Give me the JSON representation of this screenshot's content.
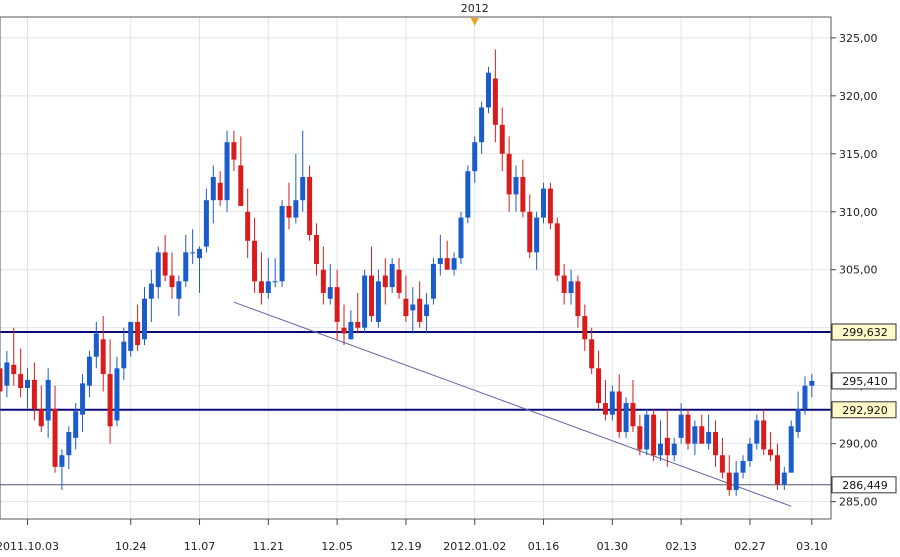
{
  "chart_data": {
    "type": "candlestick",
    "title": "",
    "xlabel": "",
    "ylabel": "",
    "ylim": [
      283.5,
      326.8
    ],
    "y_ticks": [
      "285,00",
      "290,00",
      "295,00",
      "300,00",
      "305,00",
      "310,00",
      "315,00",
      "320,00",
      "325,00"
    ],
    "y_tick_values": [
      285,
      290,
      295,
      300,
      305,
      310,
      315,
      320,
      325
    ],
    "x_ticks": [
      {
        "label": "2011.10.03",
        "bar": 4
      },
      {
        "label": "10.24",
        "bar": 19
      },
      {
        "label": "11.07",
        "bar": 29
      },
      {
        "label": "11.21",
        "bar": 39
      },
      {
        "label": "12.05",
        "bar": 49
      },
      {
        "label": "12.19",
        "bar": 59
      },
      {
        "label": "2012.01.02",
        "bar": 69
      },
      {
        "label": "01.16",
        "bar": 79
      },
      {
        "label": "01.30",
        "bar": 89
      },
      {
        "label": "02.13",
        "bar": 99
      },
      {
        "label": "02.27",
        "bar": 109
      },
      {
        "label": "03.10",
        "bar": 118
      }
    ],
    "year_marker": {
      "label": "2012",
      "bar": 69
    },
    "levels": [
      {
        "value": 299.632,
        "label": "299,632",
        "style": "thick"
      },
      {
        "value": 292.92,
        "label": "292,920",
        "style": "thick"
      },
      {
        "value": 286.449,
        "label": "286,449",
        "style": "thin"
      }
    ],
    "extra_tag": {
      "value": 295.41,
      "label": "295,410"
    },
    "trendline": {
      "from": {
        "bar": 34,
        "value": 302.2
      },
      "to": {
        "bar": 115,
        "value": 284.6
      }
    },
    "bars": [
      [
        296.5,
        297.5,
        293.5,
        294.5
      ],
      [
        295.0,
        298.0,
        294.0,
        297.0
      ],
      [
        296.8,
        300.0,
        295.0,
        296.0
      ],
      [
        296.0,
        298.2,
        294.0,
        294.8
      ],
      [
        294.8,
        296.5,
        293.0,
        295.5
      ],
      [
        295.5,
        297.0,
        292.0,
        293.0
      ],
      [
        293.0,
        295.0,
        291.0,
        291.5
      ],
      [
        292.0,
        296.5,
        290.5,
        295.5
      ],
      [
        293.0,
        295.0,
        287.5,
        288.0
      ],
      [
        288.0,
        289.5,
        286.0,
        289.0
      ],
      [
        289.0,
        291.5,
        287.8,
        291.0
      ],
      [
        290.5,
        293.5,
        289.5,
        292.8
      ],
      [
        292.5,
        296.0,
        291.0,
        295.2
      ],
      [
        295.0,
        298.0,
        294.0,
        297.5
      ],
      [
        297.5,
        300.5,
        296.5,
        299.5
      ],
      [
        299.0,
        301.0,
        294.5,
        296.0
      ],
      [
        296.0,
        299.0,
        290.0,
        291.5
      ],
      [
        292.0,
        297.5,
        291.5,
        296.5
      ],
      [
        296.5,
        300.0,
        295.5,
        298.8
      ],
      [
        298.0,
        300.5,
        297.5,
        300.5
      ],
      [
        300.5,
        302.0,
        298.0,
        298.5
      ],
      [
        299.0,
        303.5,
        298.5,
        302.5
      ],
      [
        302.5,
        305.0,
        300.5,
        303.8
      ],
      [
        303.5,
        307.0,
        302.5,
        306.5
      ],
      [
        306.5,
        308.0,
        304.0,
        304.5
      ],
      [
        304.5,
        306.5,
        302.5,
        303.5
      ],
      [
        302.5,
        304.5,
        301.0,
        304.0
      ],
      [
        304.0,
        308.0,
        303.5,
        306.5
      ],
      [
        306.5,
        308.5,
        305.5,
        306.5
      ],
      [
        306.0,
        307.0,
        303.0,
        306.8
      ],
      [
        307.0,
        312.0,
        306.5,
        311.0
      ],
      [
        311.0,
        314.0,
        309.0,
        313.0
      ],
      [
        312.5,
        313.5,
        310.5,
        311.0
      ],
      [
        311.0,
        317.0,
        310.0,
        316.0
      ],
      [
        316.0,
        317.0,
        313.5,
        314.5
      ],
      [
        314.0,
        316.5,
        310.5,
        310.5
      ],
      [
        310.0,
        312.0,
        306.0,
        307.5
      ],
      [
        307.5,
        309.5,
        303.0,
        304.0
      ],
      [
        304.0,
        306.5,
        302.0,
        303.0
      ],
      [
        303.0,
        306.0,
        302.5,
        304.0
      ],
      [
        304.0,
        306.0,
        303.5,
        304.0
      ],
      [
        304.0,
        311.0,
        303.5,
        310.5
      ],
      [
        310.5,
        312.5,
        308.5,
        309.5
      ],
      [
        309.5,
        315.0,
        309.0,
        311.0
      ],
      [
        311.0,
        317.0,
        310.0,
        313.0
      ],
      [
        313.0,
        314.0,
        307.5,
        308.0
      ],
      [
        308.0,
        309.0,
        304.5,
        305.5
      ],
      [
        305.0,
        307.0,
        302.0,
        303.0
      ],
      [
        302.5,
        305.5,
        302.0,
        303.5
      ],
      [
        303.5,
        305.0,
        299.0,
        300.5
      ],
      [
        300.0,
        302.0,
        298.5,
        299.5
      ],
      [
        299.0,
        301.5,
        299.0,
        300.5
      ],
      [
        300.5,
        303.0,
        299.5,
        300.0
      ],
      [
        300.0,
        305.0,
        299.5,
        304.5
      ],
      [
        304.5,
        307.0,
        300.5,
        301.0
      ],
      [
        300.5,
        305.0,
        300.0,
        304.0
      ],
      [
        304.5,
        306.0,
        302.0,
        303.5
      ],
      [
        303.5,
        306.0,
        303.0,
        305.5
      ],
      [
        305.0,
        306.0,
        302.5,
        303.0
      ],
      [
        302.5,
        304.5,
        300.5,
        301.0
      ],
      [
        301.5,
        303.5,
        299.5,
        302.0
      ],
      [
        302.5,
        304.0,
        300.0,
        300.5
      ],
      [
        301.0,
        303.0,
        299.5,
        302.0
      ],
      [
        302.5,
        306.0,
        302.0,
        305.5
      ],
      [
        305.5,
        308.0,
        304.5,
        306.0
      ],
      [
        306.0,
        307.5,
        305.0,
        305.0
      ],
      [
        305.0,
        306.5,
        304.5,
        306.0
      ],
      [
        306.0,
        310.0,
        305.5,
        309.5
      ],
      [
        309.5,
        314.0,
        309.0,
        313.5
      ],
      [
        313.5,
        316.5,
        312.5,
        316.0
      ],
      [
        316.0,
        319.5,
        315.0,
        319.0
      ],
      [
        319.0,
        322.5,
        318.5,
        322.0
      ],
      [
        321.5,
        324.0,
        316.0,
        317.5
      ],
      [
        317.5,
        319.0,
        313.5,
        315.0
      ],
      [
        315.0,
        316.5,
        310.0,
        311.5
      ],
      [
        311.5,
        314.0,
        310.0,
        313.0
      ],
      [
        313.0,
        314.5,
        309.5,
        310.0
      ],
      [
        310.0,
        311.5,
        306.0,
        306.5
      ],
      [
        306.5,
        310.0,
        305.0,
        309.5
      ],
      [
        309.5,
        312.5,
        309.0,
        312.0
      ],
      [
        312.0,
        312.5,
        308.5,
        309.0
      ],
      [
        309.0,
        309.5,
        304.0,
        304.5
      ],
      [
        304.5,
        305.5,
        302.0,
        303.0
      ],
      [
        303.0,
        305.0,
        302.0,
        304.0
      ],
      [
        304.0,
        304.5,
        300.0,
        301.0
      ],
      [
        301.0,
        302.0,
        298.0,
        299.0
      ],
      [
        299.0,
        300.0,
        296.0,
        296.5
      ],
      [
        296.5,
        298.0,
        293.0,
        293.5
      ],
      [
        293.5,
        295.5,
        292.0,
        292.5
      ],
      [
        292.5,
        295.0,
        292.0,
        294.5
      ],
      [
        294.5,
        296.0,
        290.5,
        291.0
      ],
      [
        291.0,
        294.0,
        290.5,
        293.5
      ],
      [
        293.5,
        295.5,
        291.0,
        291.5
      ],
      [
        291.5,
        292.5,
        289.0,
        289.5
      ],
      [
        289.5,
        293.0,
        289.0,
        292.5
      ],
      [
        292.5,
        293.0,
        288.5,
        289.0
      ],
      [
        289.0,
        292.0,
        288.5,
        290.0
      ],
      [
        290.5,
        293.0,
        288.0,
        289.0
      ],
      [
        289.0,
        290.5,
        288.5,
        290.0
      ],
      [
        290.5,
        293.5,
        290.0,
        292.5
      ],
      [
        292.5,
        293.0,
        289.5,
        290.0
      ],
      [
        290.0,
        292.0,
        289.0,
        291.5
      ],
      [
        291.5,
        292.5,
        290.0,
        290.0
      ],
      [
        290.0,
        292.5,
        289.5,
        291.0
      ],
      [
        291.0,
        292.0,
        288.0,
        289.0
      ],
      [
        289.0,
        290.5,
        287.0,
        287.5
      ],
      [
        287.5,
        289.0,
        285.5,
        286.0
      ],
      [
        286.0,
        288.5,
        285.5,
        287.5
      ],
      [
        287.5,
        289.0,
        287.0,
        288.5
      ],
      [
        288.5,
        290.5,
        288.0,
        290.0
      ],
      [
        290.0,
        292.5,
        289.5,
        292.0
      ],
      [
        292.0,
        293.0,
        289.0,
        289.5
      ],
      [
        289.5,
        291.0,
        288.5,
        289.0
      ],
      [
        289.0,
        290.0,
        286.0,
        286.5
      ],
      [
        286.5,
        288.0,
        286.0,
        287.5
      ],
      [
        287.5,
        292.0,
        287.5,
        291.5
      ],
      [
        291.0,
        294.5,
        290.5,
        293.0
      ],
      [
        293.0,
        295.8,
        292.5,
        295.0
      ],
      [
        295.0,
        296.0,
        294.0,
        295.41
      ]
    ]
  }
}
